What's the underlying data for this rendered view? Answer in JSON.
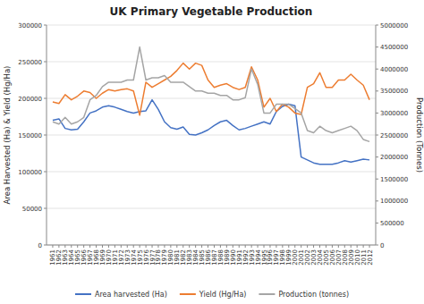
{
  "chart_data": {
    "type": "line",
    "title": "UK Primary Vegetable Production",
    "ylabel": "Area Harvested (Ha) & Yield (Hg/Ha)",
    "y2label": "Production (Tonnes)",
    "x": [
      1961,
      1962,
      1963,
      1964,
      1965,
      1966,
      1967,
      1968,
      1969,
      1970,
      1971,
      1972,
      1973,
      1974,
      1975,
      1976,
      1977,
      1978,
      1979,
      1980,
      1981,
      1982,
      1983,
      1984,
      1985,
      1986,
      1987,
      1988,
      1989,
      1990,
      1991,
      1992,
      1993,
      1994,
      1995,
      1996,
      1997,
      1998,
      1999,
      2000,
      2001,
      2002,
      2003,
      2004,
      2005,
      2006,
      2007,
      2008,
      2009,
      2010,
      2011,
      2012
    ],
    "xlim": [
      1960,
      2013
    ],
    "xticks": [
      1961,
      1962,
      1963,
      1964,
      1965,
      1966,
      1967,
      1968,
      1969,
      1970,
      1971,
      1972,
      1973,
      1974,
      1975,
      1976,
      1977,
      1978,
      1979,
      1980,
      1981,
      1982,
      1983,
      1984,
      1985,
      1986,
      1987,
      1988,
      1989,
      1990,
      1991,
      1992,
      1993,
      1994,
      1995,
      1996,
      1997,
      1998,
      1999,
      2000,
      2001,
      2002,
      2003,
      2004,
      2005,
      2006,
      2007,
      2008,
      2009,
      2010,
      2011,
      2012
    ],
    "ylim": [
      0,
      300000
    ],
    "yticks": [
      0,
      50000,
      100000,
      150000,
      200000,
      250000,
      300000
    ],
    "y2lim": [
      0,
      5000000
    ],
    "y2ticks": [
      0,
      500000,
      1000000,
      1500000,
      2000000,
      2500000,
      3000000,
      3500000,
      4000000,
      4500000,
      5000000
    ],
    "grid": true,
    "legend": "bottom",
    "series": [
      {
        "name": "Area harvested (Ha)",
        "color": "#4472C4",
        "values": [
          170000,
          172000,
          159000,
          157000,
          158000,
          168000,
          180000,
          183000,
          188000,
          190000,
          188000,
          185000,
          182000,
          180000,
          182000,
          183000,
          198000,
          185000,
          168000,
          160000,
          158000,
          161000,
          151000,
          150000,
          153000,
          157000,
          163000,
          168000,
          170000,
          163000,
          157000,
          159000,
          162000,
          165000,
          168000,
          165000,
          182000,
          189000,
          192000,
          190000,
          120000,
          116000,
          112000,
          110000,
          110000,
          110000,
          112000,
          115000,
          113000,
          115000,
          117000,
          116000
        ]
      },
      {
        "name": "Yield (Hg/Ha)",
        "color": "#ED7D31",
        "values": [
          195000,
          193000,
          205000,
          198000,
          203000,
          210000,
          208000,
          200000,
          207000,
          212000,
          210000,
          212000,
          213000,
          210000,
          177000,
          222000,
          215000,
          220000,
          225000,
          230000,
          238000,
          248000,
          240000,
          248000,
          245000,
          225000,
          215000,
          218000,
          220000,
          215000,
          212000,
          215000,
          243000,
          225000,
          188000,
          200000,
          182000,
          192000,
          188000,
          180000,
          178000,
          215000,
          220000,
          235000,
          215000,
          215000,
          225000,
          225000,
          233000,
          225000,
          218000,
          198000
        ]
      },
      {
        "name": "Production (tonnes)",
        "color": "#A5A5A5",
        "axis": "y2",
        "values": [
          2800000,
          2750000,
          2900000,
          2750000,
          2800000,
          2900000,
          3300000,
          3400000,
          3600000,
          3700000,
          3700000,
          3700000,
          3750000,
          3750000,
          4500000,
          3750000,
          3800000,
          3800000,
          3850000,
          3700000,
          3700000,
          3700000,
          3600000,
          3500000,
          3500000,
          3450000,
          3450000,
          3400000,
          3400000,
          3300000,
          3300000,
          3350000,
          4000000,
          3650000,
          3000000,
          3000000,
          3200000,
          3200000,
          3200000,
          3100000,
          3000000,
          2600000,
          2550000,
          2700000,
          2600000,
          2550000,
          2600000,
          2650000,
          2700000,
          2600000,
          2400000,
          2350000
        ]
      }
    ]
  }
}
